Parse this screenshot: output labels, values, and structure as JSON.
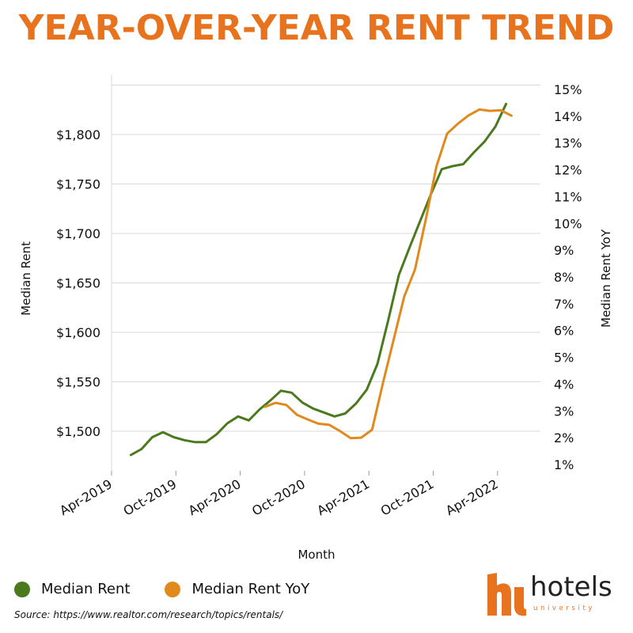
{
  "title": "YEAR-OVER-YEAR RENT TREND",
  "chart_data": {
    "type": "line",
    "title": "YEAR-OVER-YEAR RENT TREND",
    "xlabel": "Month",
    "ylabel": "Median Rent",
    "y2label": "Median Rent YoY",
    "x_range": [
      0,
      40
    ],
    "ylim": [
      1460,
      1860
    ],
    "y2lim": [
      0.01,
      0.15
    ],
    "x_ticks": [
      {
        "label": "Apr-2019",
        "x": 0
      },
      {
        "label": "Oct-2019",
        "x": 6
      },
      {
        "label": "Apr-2020",
        "x": 12
      },
      {
        "label": "Oct-2020",
        "x": 18
      },
      {
        "label": "Apr-2021",
        "x": 24
      },
      {
        "label": "Oct-2021",
        "x": 30
      },
      {
        "label": "Apr-2022",
        "x": 36
      }
    ],
    "y_ticks": [
      {
        "label": "$1,500",
        "value": 1500
      },
      {
        "label": "$1,550",
        "value": 1550
      },
      {
        "label": "$1,600",
        "value": 1600
      },
      {
        "label": "$1,650",
        "value": 1650
      },
      {
        "label": "$1,700",
        "value": 1700
      },
      {
        "label": "$1,750",
        "value": 1750
      },
      {
        "label": "$1,800",
        "value": 1800
      }
    ],
    "y2_ticks": [
      {
        "label": "1%",
        "value": 0.01
      },
      {
        "label": "2%",
        "value": 0.02
      },
      {
        "label": "3%",
        "value": 0.03
      },
      {
        "label": "4%",
        "value": 0.04
      },
      {
        "label": "5%",
        "value": 0.05
      },
      {
        "label": "6%",
        "value": 0.06
      },
      {
        "label": "7%",
        "value": 0.07
      },
      {
        "label": "8%",
        "value": 0.08
      },
      {
        "label": "9%",
        "value": 0.09
      },
      {
        "label": "10%",
        "value": 0.1
      },
      {
        "label": "11%",
        "value": 0.11
      },
      {
        "label": "12%",
        "value": 0.12
      },
      {
        "label": "13%",
        "value": 0.13
      },
      {
        "label": "14%",
        "value": 0.14
      },
      {
        "label": "15%",
        "value": 0.15
      }
    ],
    "gridlines": [
      1500,
      1550,
      1600,
      1650,
      1700,
      1750,
      1800,
      1850
    ],
    "series": [
      {
        "name": "Median Rent",
        "axis": "left",
        "color": "#4b7a1e",
        "x": [
          1.8,
          2.8,
          3.8,
          4.8,
          5.8,
          6.8,
          7.8,
          8.8,
          9.8,
          10.8,
          11.8,
          12.8,
          13.8,
          14.8,
          15.8,
          16.8,
          17.8,
          18.8,
          19.8,
          20.8,
          21.8,
          22.8,
          23.8,
          24.8,
          25.8,
          26.8,
          27.8,
          28.8,
          29.8,
          30.8,
          31.8,
          32.8,
          33.8,
          34.8,
          35.8,
          36.8
        ],
        "values": [
          1476,
          1482,
          1494,
          1499,
          1494,
          1491,
          1489,
          1489,
          1497,
          1508,
          1515,
          1511,
          1522,
          1531,
          1541,
          1539,
          1529,
          1523,
          1519,
          1515,
          1518,
          1528,
          1542,
          1568,
          1612,
          1658,
          1686,
          1713,
          1740,
          1765,
          1768,
          1770,
          1782,
          1793,
          1808,
          1831
        ]
      },
      {
        "name": "Median Rent YoY",
        "axis": "right",
        "color": "#e08a1e",
        "x": [
          14.3,
          15.3,
          16.3,
          17.3,
          18.3,
          19.3,
          20.3,
          21.3,
          22.3,
          23.3,
          24.3,
          25.3,
          26.3,
          27.3,
          28.3,
          29.3,
          30.3,
          31.3,
          32.3,
          33.3,
          34.3,
          35.3,
          36.3,
          37.3
        ],
        "values": [
          0.0315,
          0.033,
          0.0322,
          0.0285,
          0.0268,
          0.0252,
          0.0248,
          0.0225,
          0.0198,
          0.02,
          0.023,
          0.0402,
          0.0565,
          0.0727,
          0.0828,
          0.1013,
          0.1213,
          0.1335,
          0.1372,
          0.1403,
          0.1425,
          0.142,
          0.1422,
          0.1402
        ]
      }
    ],
    "legend": [
      {
        "label": "Median Rent",
        "color": "#4b7a1e"
      },
      {
        "label": "Median Rent YoY",
        "color": "#e08a1e"
      }
    ],
    "legend_position": "bottom-left"
  },
  "source": "Source: https://www.realtor.com/research/topics/rentals/",
  "logo": {
    "word": "hotels",
    "sub": "university",
    "mark_color": "#e8731f"
  }
}
